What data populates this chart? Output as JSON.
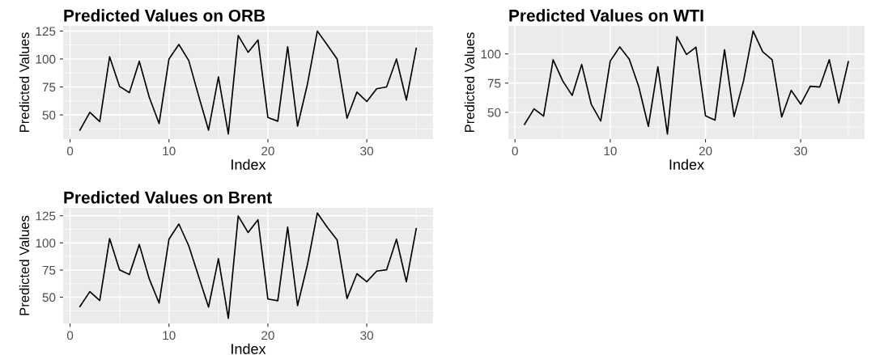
{
  "chart_data": [
    {
      "type": "line",
      "title": "Predicted Values on ORB",
      "xlabel": "Index",
      "ylabel": "Predicted Values",
      "grid": true,
      "xlim": [
        -0.7,
        36.7
      ],
      "xticks": [
        0,
        10,
        20,
        30
      ],
      "ylim": [
        28.4,
        129.6
      ],
      "yticks": [
        50,
        75,
        100,
        125
      ],
      "x": [
        1,
        2,
        3,
        4,
        5,
        6,
        7,
        8,
        9,
        10,
        11,
        12,
        13,
        14,
        15,
        16,
        17,
        18,
        19,
        20,
        21,
        22,
        23,
        24,
        25,
        26,
        27,
        28,
        29,
        30,
        31,
        32,
        33,
        34,
        35
      ],
      "series": [
        {
          "color": "#000000",
          "values": [
            36.4,
            52.3,
            44,
            102,
            75.5,
            70,
            98,
            66,
            42.3,
            100,
            113,
            98.6,
            67,
            36.4,
            84,
            33,
            121,
            106,
            117,
            47.7,
            44.4,
            111,
            40,
            77.6,
            125,
            112.6,
            100,
            47,
            70.4,
            62,
            73.4,
            75,
            100,
            63.3,
            109.6
          ]
        }
      ]
    },
    {
      "type": "line",
      "title": "Predicted Values on WTI",
      "xlabel": "Index",
      "ylabel": "Predicted Values",
      "grid": true,
      "xlim": [
        -0.7,
        36.7
      ],
      "xticks": [
        0,
        10,
        20,
        30
      ],
      "ylim": [
        27.1,
        124
      ],
      "yticks": [
        50,
        75,
        100
      ],
      "x": [
        1,
        2,
        3,
        4,
        5,
        6,
        7,
        8,
        9,
        10,
        11,
        12,
        13,
        14,
        15,
        16,
        17,
        18,
        19,
        20,
        21,
        22,
        23,
        24,
        25,
        26,
        27,
        28,
        29,
        30,
        31,
        32,
        33,
        34,
        35
      ],
      "series": [
        {
          "color": "#000000",
          "values": [
            39.7,
            53,
            46.7,
            95,
            77,
            64.5,
            91,
            57,
            42.6,
            94,
            106,
            95.5,
            71.7,
            38,
            89,
            31.5,
            114.7,
            99.5,
            105.8,
            47,
            43.3,
            103.6,
            46.4,
            77,
            119.6,
            102,
            95,
            46,
            68.8,
            57,
            72.3,
            71.7,
            95,
            58,
            93.3
          ]
        }
      ]
    },
    {
      "type": "line",
      "title": "Predicted Values on Brent",
      "xlabel": "Index",
      "ylabel": "Predicted Values",
      "grid": true,
      "xlim": [
        -0.7,
        36.7
      ],
      "xticks": [
        0,
        10,
        20,
        30
      ],
      "ylim": [
        25.8,
        132.3
      ],
      "yticks": [
        50,
        75,
        100,
        125
      ],
      "x": [
        1,
        2,
        3,
        4,
        5,
        6,
        7,
        8,
        9,
        10,
        11,
        12,
        13,
        14,
        15,
        16,
        17,
        18,
        19,
        20,
        21,
        22,
        23,
        24,
        25,
        26,
        27,
        28,
        29,
        30,
        31,
        32,
        33,
        34,
        35
      ],
      "series": [
        {
          "color": "#000000",
          "values": [
            41.4,
            55.1,
            47,
            104,
            75.2,
            70.8,
            98.5,
            67,
            44.6,
            103.4,
            117.4,
            97.3,
            69,
            40.9,
            85.5,
            30.6,
            124.8,
            109.6,
            121.3,
            48.3,
            46.8,
            114.5,
            42.2,
            80,
            127.5,
            114.5,
            102.7,
            48.8,
            71.6,
            64.2,
            74,
            75.2,
            103.4,
            64.2,
            113.2
          ]
        }
      ]
    }
  ]
}
